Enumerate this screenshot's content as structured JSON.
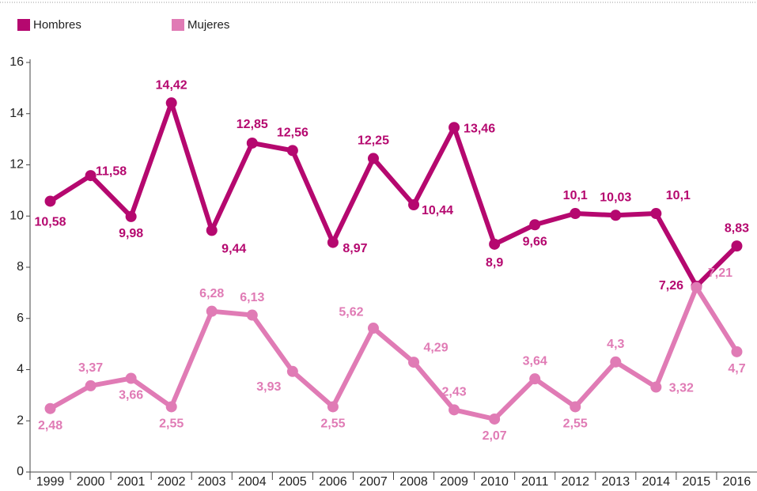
{
  "chart_data": {
    "type": "line",
    "categories": [
      "1999",
      "2000",
      "2001",
      "2002",
      "2003",
      "2004",
      "2005",
      "2006",
      "2007",
      "2008",
      "2009",
      "2010",
      "2011",
      "2012",
      "2013",
      "2014",
      "2015",
      "2016"
    ],
    "series": [
      {
        "name": "Hombres",
        "color": "#b5086f",
        "values": [
          10.58,
          11.58,
          9.98,
          14.42,
          9.44,
          12.85,
          12.56,
          8.97,
          12.25,
          10.44,
          13.46,
          8.9,
          9.66,
          10.1,
          10.03,
          10.1,
          7.26,
          8.83
        ],
        "value_labels": [
          "10,58",
          "11,58",
          "9,98",
          "14,42",
          "9,44",
          "12,85",
          "12,56",
          "8,97",
          "12,25",
          "10,44",
          "13,46",
          "8,9",
          "9,66",
          "10,1",
          "10,03",
          "10,1",
          "7,26",
          "8,83"
        ]
      },
      {
        "name": "Mujeres",
        "color": "#e07bb5",
        "values": [
          2.48,
          3.37,
          3.66,
          2.55,
          6.28,
          6.13,
          3.93,
          2.55,
          5.62,
          4.29,
          2.43,
          2.07,
          3.64,
          2.55,
          4.3,
          3.32,
          7.21,
          4.7
        ],
        "value_labels": [
          "2,48",
          "3,37",
          "3,66",
          "2,55",
          "6,28",
          "6,13",
          "3,93",
          "2,55",
          "5,62",
          "4,29",
          "2,43",
          "2,07",
          "3,64",
          "2,55",
          "4,3",
          "3,32",
          "7,21",
          "4,7"
        ]
      }
    ],
    "ylim": [
      0,
      16
    ],
    "yticks": [
      0,
      2,
      4,
      6,
      8,
      10,
      12,
      14,
      16
    ],
    "grid": false,
    "legend": "top"
  }
}
